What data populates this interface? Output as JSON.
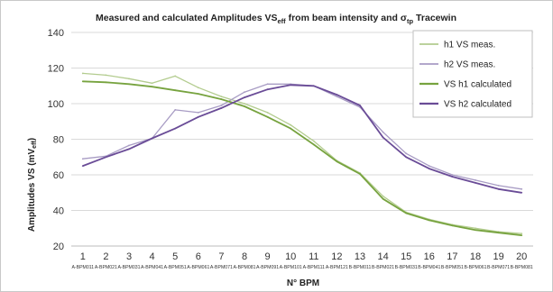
{
  "chart_data": {
    "type": "line",
    "title": {
      "prefix": "Measured and calculated Amplitudes VS",
      "sub1": "eff",
      "middle": " from beam intensity and σ",
      "sub2": "tp",
      "suffix": " Tracewin"
    },
    "xlabel": "N° BPM",
    "ylabel": {
      "main": "Amplitudes VS (mV",
      "sub": "eff",
      "close": ")"
    },
    "ylim": [
      20,
      140
    ],
    "yticks": [
      "20",
      "40",
      "60",
      "80",
      "100",
      "120",
      "140"
    ],
    "x": [
      1,
      2,
      3,
      4,
      5,
      6,
      7,
      8,
      9,
      10,
      11,
      12,
      13,
      14,
      15,
      16,
      17,
      18,
      19,
      20
    ],
    "categories": [
      "A-BPM011",
      "A-BPM021",
      "A-BPM031",
      "A-BPM041",
      "A-BPM051",
      "A-BPM061",
      "A-BPM071",
      "A-BPM081",
      "A-BPM091",
      "A-BPM101",
      "A-BPM111",
      "A-BPM121",
      "B-BPM011",
      "B-BPM021",
      "B-BPM031",
      "B-BPM041",
      "B-BPM051",
      "B-BPM061",
      "B-BPM071",
      "B-BPM081"
    ],
    "grid": "horizontal",
    "legend_position": "top-right",
    "series": [
      {
        "name": "h1 VS meas.",
        "color": "#b3cc8f",
        "width": 1.3,
        "values": [
          117,
          116,
          114,
          111.5,
          115.5,
          109,
          104,
          100,
          95,
          88,
          79,
          68,
          61,
          48,
          39,
          35,
          32,
          30,
          28,
          27
        ]
      },
      {
        "name": "h2 VS meas.",
        "color": "#a89cc4",
        "width": 1.3,
        "values": [
          69,
          70.5,
          76.5,
          80.5,
          96.5,
          95,
          99,
          106.5,
          111,
          111,
          110,
          104,
          98,
          84,
          72,
          65,
          60,
          57,
          54,
          52
        ]
      },
      {
        "name": "VS h1 calculated",
        "color": "#77a33f",
        "width": 1.8,
        "values": [
          112.5,
          112,
          111,
          109.5,
          107.5,
          105.5,
          102.5,
          98.5,
          92.5,
          86,
          77,
          67.5,
          60.5,
          46.5,
          38.5,
          34.5,
          31.5,
          29,
          27.5,
          26
        ]
      },
      {
        "name": "VS h2 calculated",
        "color": "#6a4c97",
        "width": 1.8,
        "values": [
          65,
          70,
          74.5,
          80.5,
          86,
          92.5,
          97.5,
          103.5,
          108,
          110.5,
          110,
          105,
          99,
          81,
          70,
          63.5,
          59,
          55.5,
          52,
          50
        ]
      }
    ]
  }
}
